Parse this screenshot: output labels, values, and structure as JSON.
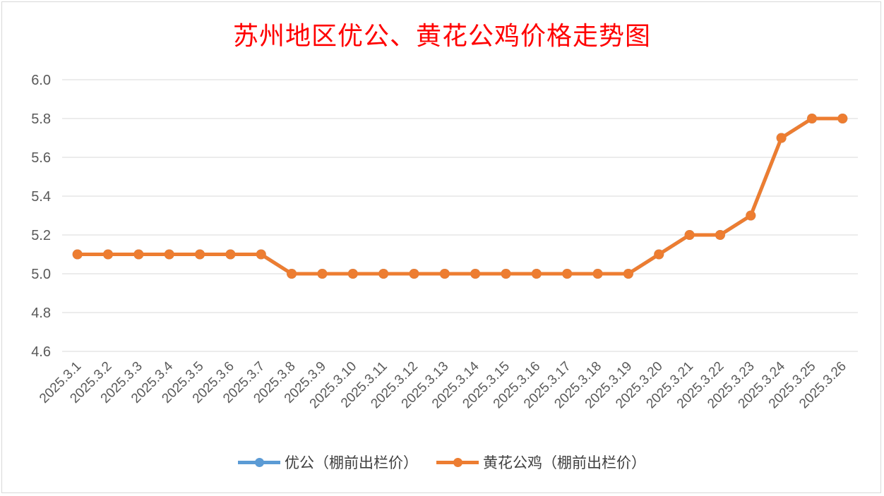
{
  "chart_data": {
    "type": "line",
    "title": "苏州地区优公、黄花公鸡价格走势图",
    "categories": [
      "2025.3.1",
      "2025.3.2",
      "2025.3.3",
      "2025.3.4",
      "2025.3.5",
      "2025.3.6",
      "2025.3.7",
      "2025.3.8",
      "2025.3.9",
      "2025.3.10",
      "2025.3.11",
      "2025.3.12",
      "2025.3.13",
      "2025.3.14",
      "2025.3.15",
      "2025.3.16",
      "2025.3.17",
      "2025.3.18",
      "2025.3.19",
      "2025.3.20",
      "2025.3.21",
      "2025.3.22",
      "2025.3.23",
      "2025.3.24",
      "2025.3.25",
      "2025.3.26"
    ],
    "ylim": [
      4.6,
      6.0
    ],
    "yticks": [
      "6.0",
      "5.8",
      "5.6",
      "5.4",
      "5.2",
      "5.0",
      "4.8",
      "4.6"
    ],
    "grid": true,
    "legend_position": "bottom",
    "series": [
      {
        "name": "优公（棚前出栏价）",
        "color": "#5b9bd5",
        "values": [
          5.1,
          5.1,
          5.1,
          5.1,
          5.1,
          5.1,
          5.1,
          5.0,
          5.0,
          5.0,
          5.0,
          5.0,
          5.0,
          5.0,
          5.0,
          5.0,
          5.0,
          5.0,
          5.0,
          5.1,
          5.2,
          5.2,
          5.3,
          5.7,
          5.8,
          5.8
        ]
      },
      {
        "name": "黄花公鸡（棚前出栏价）",
        "color": "#ed7d31",
        "values": [
          5.1,
          5.1,
          5.1,
          5.1,
          5.1,
          5.1,
          5.1,
          5.0,
          5.0,
          5.0,
          5.0,
          5.0,
          5.0,
          5.0,
          5.0,
          5.0,
          5.0,
          5.0,
          5.0,
          5.1,
          5.2,
          5.2,
          5.3,
          5.7,
          5.8,
          5.8
        ]
      }
    ]
  }
}
